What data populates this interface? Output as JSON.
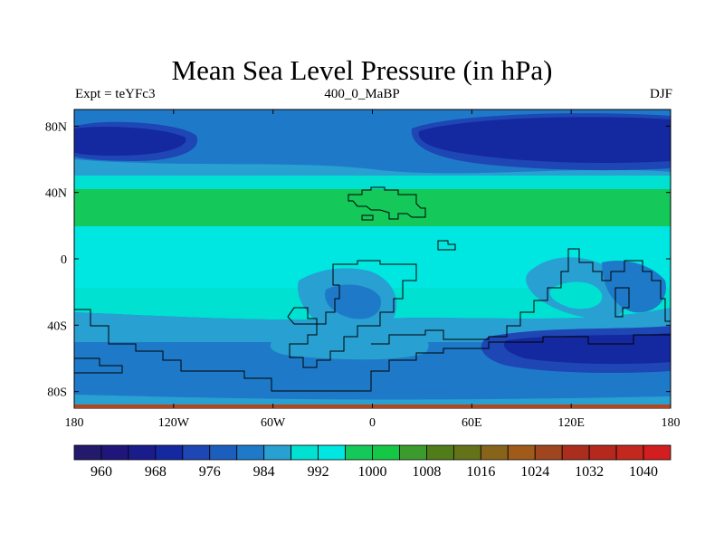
{
  "title": "Mean Sea Level Pressure (in hPa)",
  "subtitle_left": "Expt = teYFc3",
  "subtitle_center": "400_0_MaBP",
  "subtitle_right": "DJF",
  "map": {
    "projection": "cylindrical-equidistant",
    "lon_range": [
      -180,
      180
    ],
    "lat_range": [
      -90,
      90
    ],
    "y_ticks": [
      {
        "lat": 80,
        "label": "80N"
      },
      {
        "lat": 40,
        "label": "40N"
      },
      {
        "lat": 0,
        "label": "0"
      },
      {
        "lat": -40,
        "label": "40S"
      },
      {
        "lat": -80,
        "label": "80S"
      }
    ],
    "x_ticks": [
      {
        "lon": -180,
        "label": "180"
      },
      {
        "lon": -120,
        "label": "120W"
      },
      {
        "lon": -60,
        "label": "60W"
      },
      {
        "lon": 0,
        "label": "0"
      },
      {
        "lon": 60,
        "label": "60E"
      },
      {
        "lon": 120,
        "label": "120E"
      },
      {
        "lon": 180,
        "label": "180"
      }
    ]
  },
  "colorbar": {
    "colors": [
      "#231a6c",
      "#1f157a",
      "#1a1c8c",
      "#1428a0",
      "#1e46b4",
      "#1c5ebe",
      "#1e7ac8",
      "#28a0d2",
      "#00e1d2",
      "#00e6e1",
      "#14c85a",
      "#14c846",
      "#3c9b2d",
      "#507d19",
      "#64731a",
      "#876419",
      "#a05a19",
      "#a0461e",
      "#aa2d1e",
      "#b4281e",
      "#c3281e",
      "#d21e1e"
    ],
    "labels": [
      "960",
      "968",
      "976",
      "984",
      "992",
      "1000",
      "1008",
      "1016",
      "1024",
      "1032",
      "1040"
    ]
  }
}
